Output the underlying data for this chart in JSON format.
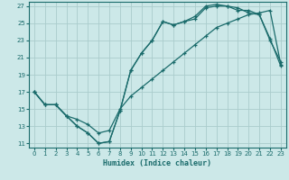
{
  "title": "",
  "xlabel": "Humidex (Indice chaleur)",
  "xlim": [
    -0.5,
    23.5
  ],
  "ylim": [
    10.5,
    27.5
  ],
  "xticks": [
    0,
    1,
    2,
    3,
    4,
    5,
    6,
    7,
    8,
    9,
    10,
    11,
    12,
    13,
    14,
    15,
    16,
    17,
    18,
    19,
    20,
    21,
    22,
    23
  ],
  "yticks": [
    11,
    13,
    15,
    17,
    19,
    21,
    23,
    25,
    27
  ],
  "bg_color": "#cce8e8",
  "grid_color": "#aacccc",
  "line_color": "#1a6b6b",
  "curve1_x": [
    0,
    1,
    2,
    3,
    4,
    5,
    6,
    7,
    8,
    9,
    10,
    11,
    12,
    13,
    14,
    15,
    16,
    17,
    18,
    19,
    20,
    21,
    22,
    23
  ],
  "curve1_y": [
    17.0,
    15.5,
    15.5,
    14.2,
    13.0,
    12.2,
    11.0,
    11.2,
    14.8,
    19.5,
    21.5,
    23.0,
    25.2,
    24.8,
    25.2,
    25.5,
    26.8,
    27.0,
    27.0,
    26.8,
    26.2,
    26.0,
    23.2,
    20.0
  ],
  "curve2_x": [
    0,
    1,
    2,
    3,
    4,
    5,
    6,
    7,
    8,
    9,
    10,
    11,
    12,
    13,
    14,
    15,
    16,
    17,
    18,
    19,
    20,
    21,
    22,
    23
  ],
  "curve2_y": [
    17.0,
    15.5,
    15.5,
    14.2,
    13.0,
    12.2,
    11.0,
    11.2,
    14.8,
    19.5,
    21.5,
    23.0,
    25.2,
    24.8,
    25.2,
    25.8,
    27.0,
    27.2,
    27.0,
    26.5,
    26.5,
    26.0,
    23.0,
    20.5
  ],
  "curve3_x": [
    0,
    1,
    2,
    3,
    4,
    5,
    6,
    7,
    8,
    9,
    10,
    11,
    12,
    13,
    14,
    15,
    16,
    17,
    18,
    19,
    20,
    21,
    22,
    23
  ],
  "curve3_y": [
    17.0,
    15.5,
    15.5,
    14.2,
    13.8,
    13.2,
    12.2,
    12.5,
    15.0,
    16.5,
    17.5,
    18.5,
    19.5,
    20.5,
    21.5,
    22.5,
    23.5,
    24.5,
    25.0,
    25.5,
    26.0,
    26.2,
    26.5,
    20.2
  ]
}
